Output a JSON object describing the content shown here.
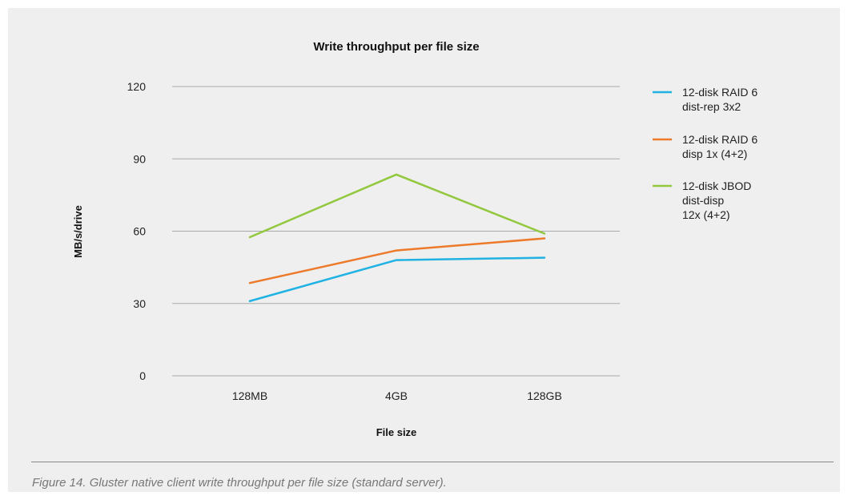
{
  "chart_data": {
    "type": "line",
    "title": "Write throughput per file size",
    "xlabel": "File size",
    "ylabel": "MB/s/drive",
    "categories": [
      "128MB",
      "4GB",
      "128GB"
    ],
    "ylim": [
      0,
      120
    ],
    "yticks": [
      0,
      30,
      60,
      90,
      120
    ],
    "grid": true,
    "legend_position": "right",
    "series": [
      {
        "name": [
          "12-disk RAID 6",
          "dist-rep 3x2"
        ],
        "color": "#1fb2e3",
        "values": [
          31,
          48,
          49
        ]
      },
      {
        "name": [
          "12-disk RAID 6",
          "disp 1x (4+2)"
        ],
        "color": "#ec7a2a",
        "values": [
          38.5,
          52,
          57
        ]
      },
      {
        "name": [
          "12-disk JBOD",
          "dist-disp",
          "12x (4+2)"
        ],
        "color": "#92c83e",
        "values": [
          57.5,
          83.5,
          59
        ]
      }
    ]
  },
  "caption": "Figure 14. Gluster native client write throughput per file size (standard server)."
}
